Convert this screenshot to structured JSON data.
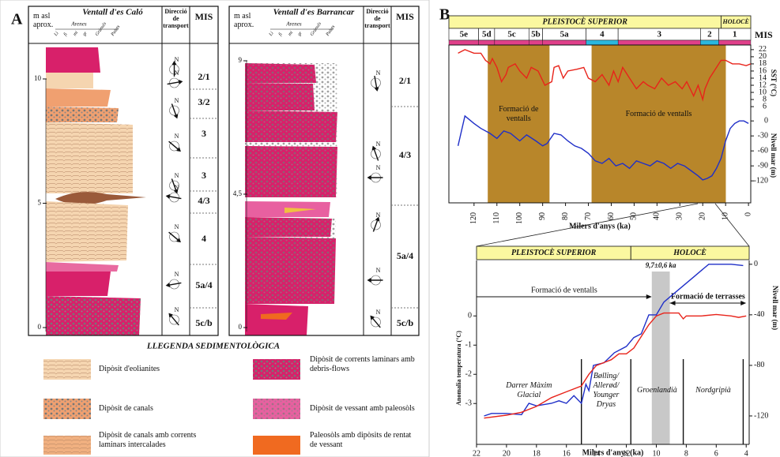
{
  "panel_a": {
    "label": "A",
    "sections": [
      {
        "header_lines": [
          "m asl",
          "aprox."
        ],
        "title": "Ventall d'es Caló",
        "sand_label": "Arenes",
        "grain_sizes": [
          "Li",
          "fi",
          "mi",
          "gr",
          "Grànuls",
          "Palets"
        ],
        "transport_lines": [
          "Direcció",
          "de",
          "transport"
        ],
        "mis_header": "MIS",
        "ylim": [
          0,
          10
        ],
        "yticks": [
          0,
          5,
          10
        ],
        "north": "N",
        "mis": [
          "2/1",
          "3/2",
          "3",
          "3",
          "4/3",
          "4",
          "5a/4",
          "5c/b"
        ]
      },
      {
        "header_lines": [
          "m asl",
          "aprox."
        ],
        "title": "Ventall d'es Barrancar",
        "sand_label": "Arenes",
        "grain_sizes": [
          "Li",
          "fi",
          "mi",
          "gr",
          "Grànuls",
          "Palets"
        ],
        "transport_lines": [
          "Direcció",
          "de",
          "transport"
        ],
        "mis_header": "MIS",
        "ylim": [
          0,
          9
        ],
        "yticks": [
          0,
          {
            "value": 4.5,
            "label": "4,5"
          },
          9
        ],
        "north": "N",
        "mis": [
          "2/1",
          "4/3",
          "5a/4",
          "5c/b"
        ]
      }
    ],
    "legend_title": "LLEGENDA SEDIMENTOLÒGICA",
    "legend": [
      {
        "lines": [
          "Dipòsit d'eolianites"
        ]
      },
      {
        "lines": [
          "Dipòsit de canals"
        ]
      },
      {
        "lines": [
          "Dipòsit de canals amb corrents",
          "laminars intercalades"
        ]
      },
      {
        "lines": [
          "Dipòsit de corrents laminars amb",
          "debris-flows"
        ]
      },
      {
        "lines": [
          "Dipòsit de vessant amb paleosòls"
        ]
      },
      {
        "lines": [
          "Paleosòls amb dipòsits de rentat",
          "de vessant"
        ]
      }
    ]
  },
  "panel_b_label": "B",
  "chart_data": [
    {
      "type": "line",
      "epochs": [
        {
          "label": "PLEISTOCÈ SUPERIOR",
          "from": 131,
          "to": 12
        },
        {
          "label": "HOLOCÈ",
          "from": 12,
          "to": -1
        }
      ],
      "stage_header": "MIS",
      "stages": [
        {
          "label": "5e",
          "from": 131,
          "to": 118,
          "color": "#e0408a"
        },
        {
          "label": "5d",
          "from": 118,
          "to": 111,
          "color": "#e0408a"
        },
        {
          "label": "5c",
          "from": 111,
          "to": 96,
          "color": "#e0408a"
        },
        {
          "label": "5b",
          "from": 96,
          "to": 90,
          "color": "#e0408a"
        },
        {
          "label": "5a",
          "from": 90,
          "to": 71,
          "color": "#e0408a"
        },
        {
          "label": "4",
          "from": 71,
          "to": 57,
          "color": "#2ab8e0"
        },
        {
          "label": "3",
          "from": 57,
          "to": 21,
          "color": "#e0408a"
        },
        {
          "label": "2",
          "from": 21,
          "to": 13,
          "color": "#2ab8e0"
        },
        {
          "label": "1",
          "from": 13,
          "to": -1,
          "color": "#e0408a"
        }
      ],
      "shaded": [
        {
          "lines": [
            "Formació de",
            "ventalls"
          ],
          "from": 114,
          "to": 87,
          "color": "#b8862a"
        },
        {
          "lines": [
            "Formació de ventalls"
          ],
          "from": 68.6,
          "to": 9.9,
          "color": "#b8862a"
        }
      ],
      "xlabel": "Milers d'anys (ka)",
      "xlim": [
        131,
        -1
      ],
      "xticks": [
        120,
        110,
        100,
        90,
        80,
        70,
        60,
        50,
        40,
        30,
        20,
        10,
        0
      ],
      "ylabel": "SST (°C)",
      "y_side": "right",
      "ylim": [
        -21,
        23.3
      ],
      "yticks": [
        6,
        8,
        10,
        12,
        14,
        16,
        18,
        20,
        22
      ],
      "y2label": "Nivell mar (m)",
      "y2lim": [
        -164,
        152
      ],
      "y2ticks": [
        0,
        -30,
        -60,
        -90,
        -120
      ],
      "series": [
        {
          "color": "#e8231a",
          "axis": "y",
          "x": [
            127,
            124,
            120,
            117,
            115,
            113,
            112,
            110,
            108,
            106,
            105,
            102,
            100,
            97,
            95,
            92,
            89,
            86,
            85,
            83,
            81,
            79,
            75,
            72,
            70,
            67,
            64,
            61,
            59,
            57,
            55,
            52,
            49,
            46,
            44,
            41,
            38,
            35,
            32,
            29,
            27,
            24,
            22,
            20,
            19,
            17,
            15,
            12,
            10,
            7,
            4,
            1,
            -1
          ],
          "values": [
            21,
            22,
            21,
            21,
            19,
            18,
            19.5,
            17,
            13,
            15,
            17,
            18,
            16,
            14,
            17,
            16,
            12,
            13,
            17,
            17.5,
            14,
            16,
            16.5,
            17,
            14,
            13,
            15,
            12,
            16,
            13,
            17,
            14,
            11,
            13,
            12,
            11,
            14,
            12,
            13,
            11,
            13,
            9,
            12,
            8,
            11,
            14,
            16,
            19,
            19,
            18,
            18,
            17.5,
            18
          ]
        },
        {
          "color": "#1f2fc8",
          "axis": "y2",
          "x": [
            127,
            124,
            120,
            117,
            113,
            110,
            107,
            104,
            100,
            97,
            93,
            90,
            88,
            85,
            82,
            79,
            76,
            73,
            70,
            67,
            64,
            61,
            58,
            55,
            52,
            49,
            46,
            43,
            40,
            37,
            34,
            31,
            28,
            25,
            22,
            20,
            18,
            16,
            14,
            12,
            10,
            8,
            6,
            4,
            2,
            0
          ],
          "values": [
            -50,
            10,
            -5,
            -15,
            -25,
            -35,
            -20,
            -25,
            -40,
            -28,
            -40,
            -50,
            -45,
            -25,
            -28,
            -40,
            -50,
            -55,
            -65,
            -80,
            -85,
            -75,
            -90,
            -85,
            -95,
            -80,
            -85,
            -90,
            -80,
            -85,
            -95,
            -85,
            -90,
            -100,
            -110,
            -118,
            -115,
            -110,
            -95,
            -75,
            -40,
            -15,
            -5,
            0,
            0,
            -5
          ]
        }
      ]
    },
    {
      "type": "line",
      "epochs": [
        {
          "label": "PLEISTOCÈ SUPERIOR",
          "from": 22,
          "to": 11.7
        },
        {
          "label": "HOLOCÈ",
          "from": 11.7,
          "to": 3.8
        }
      ],
      "band": {
        "label": "9,7±0,6 ka",
        "from": 10.3,
        "to": 9.1,
        "color": "#c8c8c8"
      },
      "arrows": [
        {
          "label": "Formació de ventalls",
          "from": 22,
          "to": 10.3
        },
        {
          "label": "Formació de terrasses",
          "from": 9.1,
          "to": 4
        }
      ],
      "periods": [
        {
          "lines": [
            "Darrer Màxim",
            "Glacial"
          ],
          "from": 22,
          "to": 15
        },
        {
          "lines": [
            "Bølling/",
            "Allerød/",
            "Younger",
            "Dryas"
          ],
          "from": 15,
          "to": 11.7
        },
        {
          "lines": [
            "Groenlandià"
          ],
          "from": 11.7,
          "to": 8.2
        },
        {
          "lines": [
            "Nordgripià"
          ],
          "from": 8.2,
          "to": 4.2
        }
      ],
      "xlabel": "Milers d'anys (ka)",
      "xlim": [
        22,
        3.8
      ],
      "xticks": [
        22,
        20,
        18,
        16,
        14,
        12,
        10,
        8,
        6,
        4
      ],
      "ylabel": "Anomalia temperatura (°C)",
      "y_side": "left",
      "ylim": [
        -4.4,
        1.9
      ],
      "yticks": [
        0,
        -1,
        -2,
        -3
      ],
      "y2label": "Nivell mar (m)",
      "y2lim": [
        -142.5,
        3
      ],
      "y2ticks": [
        0,
        -40,
        -80,
        -120
      ],
      "series": [
        {
          "color": "#1f2fc8",
          "axis": "y2",
          "x": [
            21.5,
            21,
            20,
            19,
            18.5,
            18,
            17,
            16.5,
            16,
            15.5,
            15,
            14.7,
            14.5,
            14.2,
            13.5,
            12.8,
            12,
            11.5,
            11,
            10.5,
            10,
            9.5,
            9,
            8.5,
            8,
            7.5,
            7,
            6.5,
            6,
            5,
            4.2
          ],
          "values": [
            -120,
            -118,
            -118,
            -119,
            -110,
            -112,
            -110,
            -108,
            -110,
            -104,
            -110,
            -95,
            -100,
            -80,
            -78,
            -70,
            -65,
            -58,
            -55,
            -40,
            -40,
            -30,
            -25,
            -20,
            -15,
            -10,
            -5,
            0,
            0,
            0,
            -1
          ]
        },
        {
          "color": "#e8231a",
          "axis": "y",
          "x": [
            21.5,
            20,
            19,
            18,
            17,
            16,
            15,
            14.5,
            14,
            13.5,
            13,
            12.5,
            12,
            11.5,
            11,
            10.5,
            10,
            9.5,
            9,
            8.5,
            8.2,
            8,
            7,
            6,
            5,
            4.5,
            4
          ],
          "values": [
            -3.5,
            -3.4,
            -3.3,
            -3.1,
            -2.8,
            -2.6,
            -2.4,
            -2.0,
            -1.7,
            -1.6,
            -1.5,
            -1.3,
            -1.3,
            -1.1,
            -0.7,
            -0.3,
            0,
            0.1,
            0.1,
            0.1,
            -0.1,
            0,
            0,
            0.05,
            0,
            -0.05,
            0
          ]
        }
      ]
    }
  ]
}
